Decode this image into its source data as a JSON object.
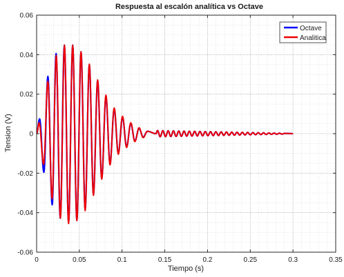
{
  "chart_data": {
    "type": "line",
    "title": "Respuesta al escalón analítica vs Octave",
    "xlabel": "Tiempo (s)",
    "ylabel": "Tension (V)",
    "xlim": [
      0,
      0.35
    ],
    "ylim": [
      -0.06,
      0.06
    ],
    "xticks": [
      0,
      0.05,
      0.1,
      0.15,
      0.2,
      0.25,
      0.3,
      0.35
    ],
    "yticks": [
      -0.06,
      -0.04,
      -0.02,
      0,
      0.02,
      0.04,
      0.06
    ],
    "xtick_labels": [
      "0",
      "0.05",
      "0.1",
      "0.15",
      "0.2",
      "0.25",
      "0.3",
      "0.35"
    ],
    "ytick_labels": [
      "-0.06",
      "-0.04",
      "-0.02",
      "0",
      "0.02",
      "0.04",
      "0.06"
    ],
    "grid": true,
    "minor_grid": true,
    "legend_position": "top-right",
    "series": [
      {
        "name": "Octave",
        "color": "#0000ff",
        "peaks": [
          [
            0.0,
            0.0
          ],
          [
            0.0035,
            0.0075
          ],
          [
            0.0085,
            -0.0195
          ],
          [
            0.0132,
            0.029
          ],
          [
            0.0182,
            -0.036
          ],
          [
            0.0228,
            0.0405
          ],
          [
            0.0277,
            -0.0428
          ],
          [
            0.0325,
            0.0448
          ],
          [
            0.0374,
            -0.045
          ],
          [
            0.0422,
            0.0448
          ],
          [
            0.0471,
            -0.0438
          ],
          [
            0.052,
            0.0412
          ],
          [
            0.0568,
            -0.0385
          ],
          [
            0.0617,
            0.0348
          ],
          [
            0.0665,
            -0.0308
          ],
          [
            0.0714,
            0.0268
          ],
          [
            0.0762,
            -0.0226
          ],
          [
            0.0811,
            0.0188
          ],
          [
            0.0859,
            -0.0152
          ],
          [
            0.0908,
            0.0126
          ],
          [
            0.0956,
            -0.01
          ],
          [
            0.1005,
            0.0084
          ],
          [
            0.1053,
            -0.0066
          ],
          [
            0.1102,
            0.0052
          ],
          [
            0.115,
            -0.0038
          ],
          [
            0.1199,
            0.0028
          ],
          [
            0.1247,
            -0.0018
          ],
          [
            0.1296,
            0.0012
          ],
          [
            0.14,
            0.0
          ],
          [
            0.3,
            0.0
          ]
        ]
      },
      {
        "name": "Analitica",
        "color": "#ee0000",
        "peaks": [
          [
            0.0,
            0.0
          ],
          [
            0.003,
            0.0055
          ],
          [
            0.0082,
            -0.0155
          ],
          [
            0.0132,
            0.0265
          ],
          [
            0.0181,
            -0.033
          ],
          [
            0.023,
            0.0395
          ],
          [
            0.0278,
            -0.0428
          ],
          [
            0.0326,
            0.0448
          ],
          [
            0.0374,
            -0.0455
          ],
          [
            0.0422,
            0.0448
          ],
          [
            0.0471,
            -0.044
          ],
          [
            0.052,
            0.0415
          ],
          [
            0.0568,
            -0.039
          ],
          [
            0.0617,
            0.0352
          ],
          [
            0.0665,
            -0.0312
          ],
          [
            0.0714,
            0.0272
          ],
          [
            0.0762,
            -0.023
          ],
          [
            0.0811,
            0.0195
          ],
          [
            0.0859,
            -0.0158
          ],
          [
            0.0908,
            0.013
          ],
          [
            0.0956,
            -0.0104
          ],
          [
            0.1005,
            0.0088
          ],
          [
            0.1053,
            -0.007
          ],
          [
            0.1102,
            0.0055
          ],
          [
            0.115,
            -0.004
          ],
          [
            0.1199,
            0.003
          ],
          [
            0.1247,
            -0.002
          ],
          [
            0.1296,
            0.0012
          ],
          [
            0.14,
            0.0
          ],
          [
            0.3,
            0.0
          ]
        ]
      }
    ],
    "tail_ripple": {
      "start": 0.14,
      "end": 0.29,
      "period": 0.0062,
      "amplitude_start": 0.0016,
      "amplitude_end": 0.0002
    }
  }
}
